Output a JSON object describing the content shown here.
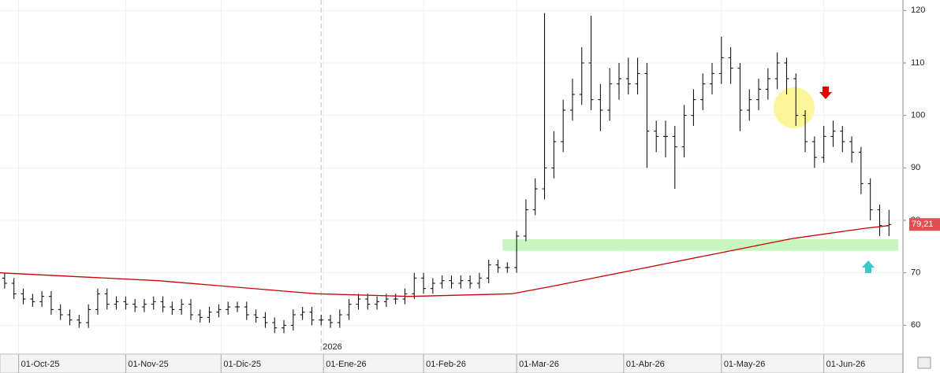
{
  "chart_data": {
    "type": "ohlc",
    "x": [
      1,
      3,
      5,
      7,
      9,
      11,
      13,
      15,
      17,
      19,
      21,
      23,
      25,
      27,
      29,
      31,
      33,
      35,
      37,
      39,
      41,
      43,
      45,
      47,
      49,
      51,
      53,
      55,
      57,
      59,
      61,
      63,
      65,
      67,
      69,
      71,
      73,
      75,
      77,
      79,
      81,
      83,
      85,
      87,
      89,
      91,
      93,
      95,
      97,
      99,
      101,
      103,
      105,
      107,
      109,
      111,
      113,
      115,
      117,
      119,
      121,
      123,
      125,
      127,
      129,
      131,
      133,
      135,
      137,
      139,
      141,
      143,
      145,
      147,
      149,
      151,
      153,
      155,
      157,
      159,
      161,
      163,
      165,
      167,
      169,
      171,
      173,
      175,
      177,
      179,
      181,
      183,
      185,
      187,
      189,
      191
    ],
    "open": [
      69,
      68,
      66,
      65,
      64.5,
      65.5,
      63,
      62,
      61,
      60.5,
      63,
      66,
      64,
      64.5,
      64,
      63.5,
      64,
      64.5,
      63.5,
      63,
      64,
      62,
      61.5,
      62.5,
      63,
      63.5,
      63.5,
      62,
      61.5,
      60.5,
      59.5,
      60,
      62,
      62.5,
      61,
      61,
      60.5,
      62,
      64,
      65,
      64,
      64.5,
      65,
      65,
      66,
      69,
      67,
      68,
      68.5,
      68,
      68.5,
      68,
      69,
      71.5,
      71,
      71,
      77,
      82,
      86,
      90,
      95,
      101,
      104,
      110,
      103,
      101,
      106,
      107,
      106,
      108,
      97,
      96,
      96,
      94,
      100,
      103,
      106,
      108,
      111,
      109,
      101,
      103,
      105,
      107,
      110,
      107,
      100,
      95,
      92,
      96,
      97,
      95,
      93,
      87,
      82,
      79
    ],
    "high": [
      70,
      69,
      67,
      66,
      66.5,
      66.5,
      64,
      63,
      62,
      64,
      67,
      67,
      65.5,
      65.5,
      65,
      65,
      65.5,
      65.5,
      64.5,
      65,
      65,
      63,
      63.5,
      64,
      64.5,
      64.5,
      64.5,
      63,
      62.5,
      61.5,
      61,
      63,
      63.5,
      63.5,
      62,
      62,
      63,
      65,
      66,
      66,
      65.5,
      66,
      66,
      67,
      70,
      70,
      69,
      69.5,
      69.5,
      69.5,
      69.5,
      70,
      72.5,
      72.5,
      72,
      78,
      84,
      88,
      119.5,
      97,
      103,
      107,
      113,
      119,
      106,
      109,
      110,
      111,
      111,
      110,
      99,
      99,
      98,
      102,
      105,
      108,
      110,
      115,
      113,
      110,
      105,
      107,
      109,
      112,
      111,
      108,
      101,
      96,
      98,
      99,
      98,
      96,
      94,
      88,
      83,
      82
    ],
    "low": [
      67,
      65,
      64,
      63.5,
      63.5,
      62,
      61,
      60,
      59.5,
      59.5,
      62,
      63,
      63,
      63,
      62.5,
      62.5,
      63,
      62.5,
      62,
      62,
      61,
      60.5,
      60.5,
      61.5,
      62,
      62.5,
      61,
      60.5,
      59.5,
      58.5,
      58.5,
      59,
      61,
      60,
      60,
      59.5,
      59.5,
      61,
      63,
      63,
      63,
      63.5,
      64,
      64,
      65,
      66,
      66,
      67,
      67,
      67,
      67,
      67,
      68,
      70,
      70,
      70,
      76,
      81,
      84,
      88,
      93,
      99,
      102,
      101,
      97,
      99,
      103,
      104,
      104,
      90,
      93,
      92,
      86,
      92,
      98,
      101,
      104,
      106,
      106,
      97,
      99,
      101,
      103,
      105,
      104,
      98,
      93,
      90,
      91,
      94,
      93,
      91,
      85,
      80,
      77,
      77
    ],
    "close": [
      68,
      66,
      65,
      64.5,
      65.5,
      63,
      62,
      61,
      60.5,
      63,
      66,
      64,
      64.5,
      64,
      63.5,
      64,
      64.5,
      63.5,
      63,
      64,
      62,
      61.5,
      62.5,
      63,
      63.5,
      63.5,
      62,
      61.5,
      60.5,
      59.5,
      60,
      62,
      62.5,
      61,
      61,
      60.5,
      62,
      64,
      65,
      64,
      64.5,
      65,
      65,
      66,
      69,
      67,
      68,
      68.5,
      68,
      68.5,
      68,
      69,
      71.5,
      71,
      71,
      77,
      82,
      86,
      90,
      95,
      101,
      104,
      110,
      103,
      101,
      106,
      107,
      106,
      108,
      97,
      96,
      96,
      94,
      100,
      103,
      106,
      108,
      111,
      109,
      101,
      103,
      105,
      107,
      110,
      107,
      100,
      95,
      92,
      96,
      97,
      95,
      93,
      87,
      82,
      79,
      79.21
    ],
    "bar_color": "#000000",
    "average": {
      "x": [
        0,
        34,
        68,
        88,
        110,
        119,
        136,
        153,
        170,
        186,
        191
      ],
      "values": [
        70,
        68.5,
        66,
        65.5,
        66,
        67.5,
        70.5,
        73.5,
        76.5,
        78.5,
        79
      ],
      "color": "#cc0000"
    },
    "last_label": {
      "value": 79.21,
      "label": "79,21"
    },
    "band": {
      "xlim": [
        108,
        193
      ],
      "ylim": [
        74.2,
        76.4
      ],
      "color": "#c8f5c0"
    },
    "year_marker": {
      "value": 69,
      "label": "2026"
    },
    "xlim": [
      0,
      194
    ],
    "ylim": [
      54.5,
      122
    ],
    "xticks": [
      {
        "value": 4,
        "label": "01-Oct-25"
      },
      {
        "value": 27,
        "label": "01-Nov-25"
      },
      {
        "value": 47.5,
        "label": "01-Dic-25"
      },
      {
        "value": 69.5,
        "label": "01-Ene-26"
      },
      {
        "value": 91,
        "label": "01-Feb-26"
      },
      {
        "value": 111,
        "label": "01-Mar-26"
      },
      {
        "value": 134,
        "label": "01-Abr-26"
      },
      {
        "value": 155,
        "label": "01-May-26"
      },
      {
        "value": 177,
        "label": "01-Jun-26"
      }
    ],
    "yticks": [
      60,
      70,
      80,
      90,
      100,
      110,
      120
    ],
    "grid": true
  }
}
